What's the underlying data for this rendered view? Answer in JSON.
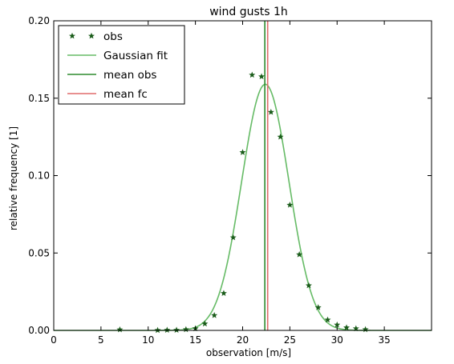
{
  "chart_data": {
    "type": "scatter",
    "title": "wind gusts 1h",
    "xlabel": "observation [m/s]",
    "ylabel": "relative frequency [1]",
    "xlim": [
      0,
      40
    ],
    "ylim": [
      0,
      0.2
    ],
    "xticks": [
      "0",
      "5",
      "10",
      "15",
      "20",
      "25",
      "30",
      "35"
    ],
    "yticks": [
      "0.00",
      "0.05",
      "0.10",
      "0.15",
      "0.20"
    ],
    "grid": false,
    "legend_position": "top-left",
    "series": [
      {
        "name": "obs",
        "kind": "markers",
        "marker": "star",
        "color": "#1a5c1a",
        "x": [
          7,
          11,
          12,
          13,
          14,
          15,
          16,
          17,
          18,
          19,
          20,
          21,
          22,
          23,
          24,
          25,
          26,
          27,
          28,
          29,
          30,
          31,
          32,
          33
        ],
        "y": [
          0.0005,
          0.0001,
          0.0002,
          0.0002,
          0.0006,
          0.0012,
          0.0043,
          0.0097,
          0.024,
          0.06,
          0.115,
          0.165,
          0.164,
          0.141,
          0.125,
          0.081,
          0.049,
          0.029,
          0.0148,
          0.0068,
          0.0036,
          0.0018,
          0.0012,
          0.0006
        ]
      },
      {
        "name": "Gaussian fit",
        "kind": "curve",
        "color": "#66bb66",
        "mean": 22.4,
        "std": 2.5,
        "peak": 0.159
      },
      {
        "name": "mean obs",
        "kind": "vline",
        "color": "#2e8b2e",
        "x": 22.35
      },
      {
        "name": "mean fc",
        "kind": "vline",
        "color": "#e06c6c",
        "x": 22.65
      }
    ]
  }
}
